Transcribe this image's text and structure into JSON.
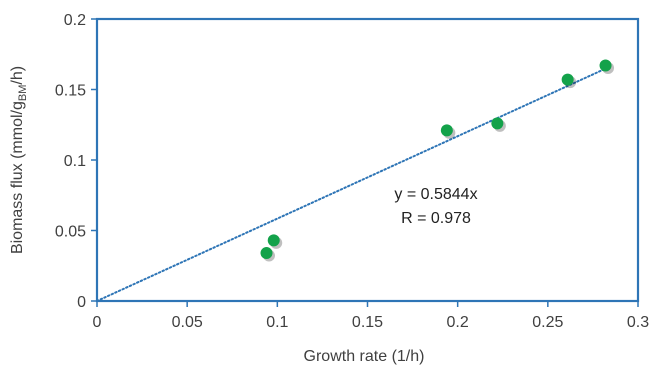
{
  "chart_data": {
    "type": "scatter",
    "xlabel": "Growth rate (1/h)",
    "ylabel": {
      "main": "Biomass flux (mmol/g",
      "sub": "BM",
      "suffix": "/h)"
    },
    "xlim": [
      0,
      0.3
    ],
    "ylim": [
      0,
      0.2
    ],
    "x_ticks": [
      "0",
      "0.05",
      "0.1",
      "0.15",
      "0.2",
      "0.25",
      "0.3"
    ],
    "y_ticks": [
      "0",
      "0.05",
      "0.1",
      "0.15",
      "0.2"
    ],
    "grid": false,
    "series": [
      {
        "points": [
          {
            "x": 0.094,
            "y": 0.034
          },
          {
            "x": 0.098,
            "y": 0.043
          },
          {
            "x": 0.194,
            "y": 0.121
          },
          {
            "x": 0.222,
            "y": 0.126
          },
          {
            "x": 0.261,
            "y": 0.157
          },
          {
            "x": 0.282,
            "y": 0.167
          }
        ],
        "marker_color": "#13a24a"
      }
    ],
    "trendline": {
      "slope": 0.5844,
      "intercept": 0,
      "x_range": [
        0,
        0.282
      ],
      "color": "#2e75b6",
      "style": "dotted"
    },
    "annotations": [
      "y = 0.5844x",
      "R = 0.978"
    ],
    "frame_color": "#2e75b6"
  }
}
